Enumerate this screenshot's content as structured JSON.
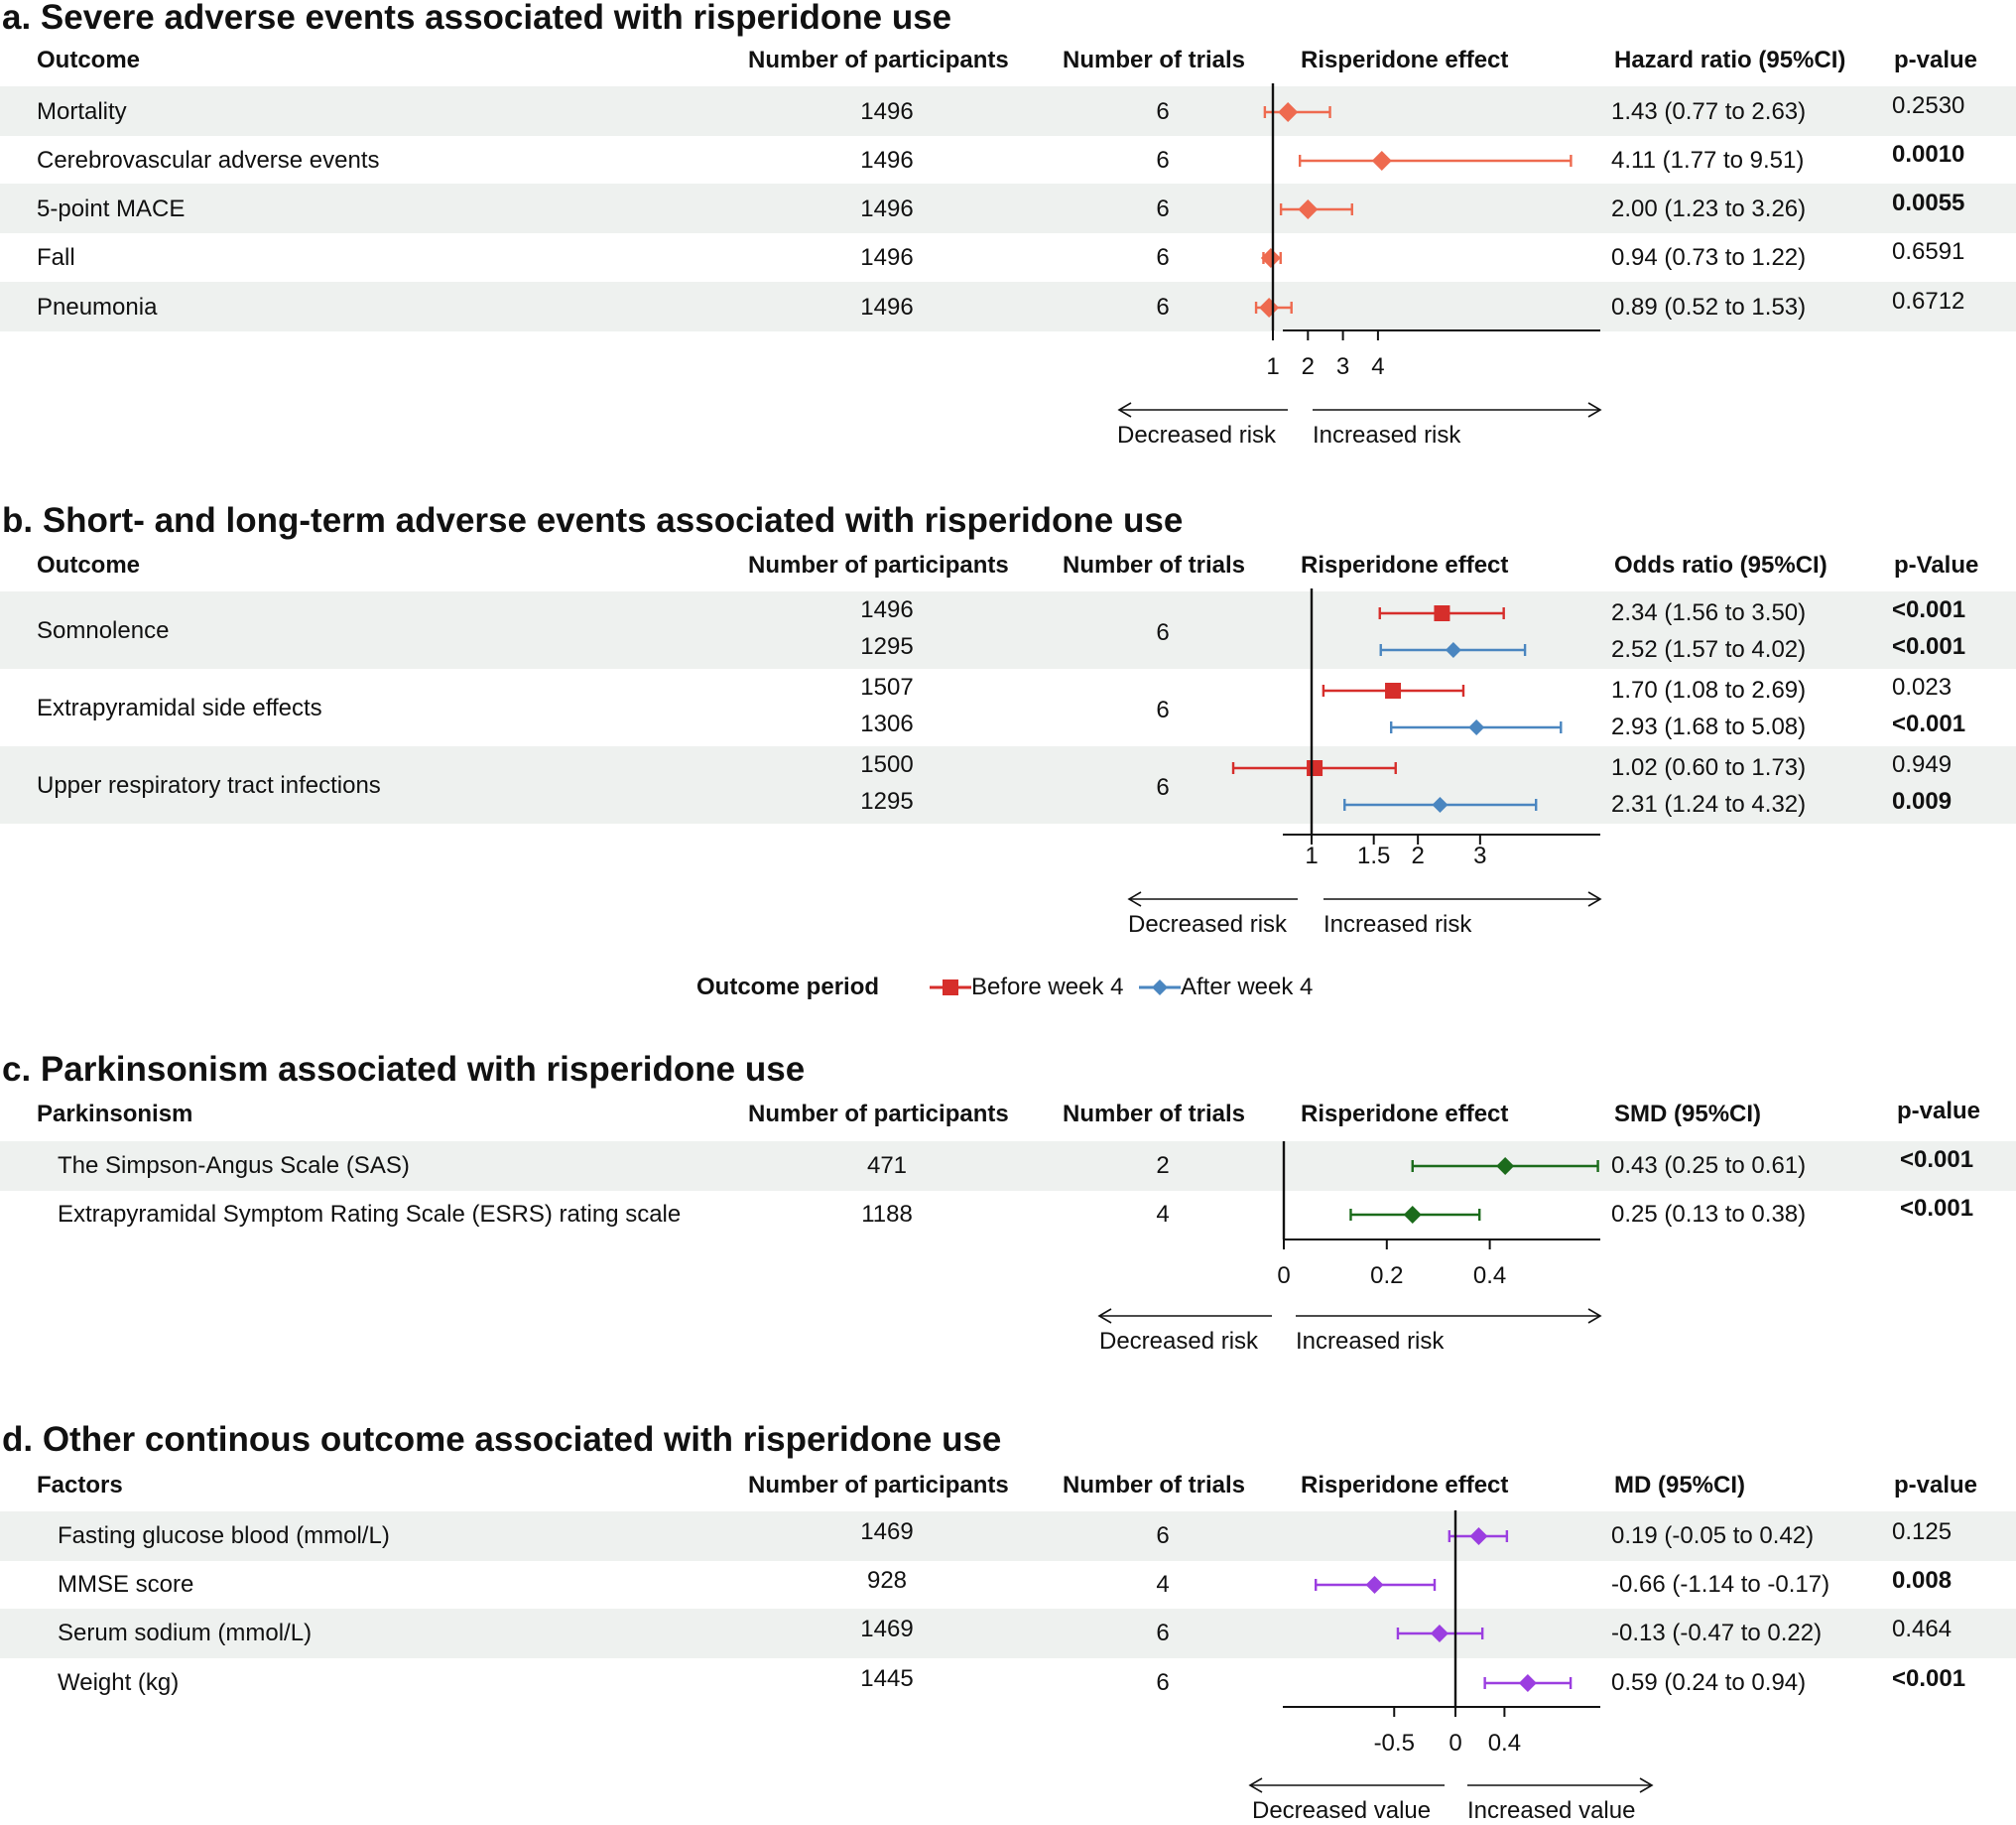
{
  "colors": {
    "band": "#eef1ef",
    "a": "#ee6a4f",
    "before": "#d62e2b",
    "after": "#4a86c0",
    "c": "#1b6b1b",
    "d": "#9b3ee0",
    "axis": "#111111"
  },
  "panels": {
    "a": {
      "title": "a. Severe adverse events associated with risperidone use",
      "headers": {
        "outcome": "Outcome",
        "participants": "Number of participants",
        "trials": "Number of trials",
        "effect": "Risperidone effect",
        "ratio": "Hazard ratio (95%CI)",
        "p": "p-value"
      },
      "arrows": {
        "left": "Decreased risk",
        "right": "Increased risk"
      }
    },
    "b": {
      "title": "b. Short- and long-term adverse events associated with risperidone use",
      "headers": {
        "outcome": "Outcome",
        "participants": "Number of participants",
        "trials": "Number of trials",
        "effect": "Risperidone effect",
        "ratio": "Odds ratio (95%CI)",
        "p": "p-Value"
      },
      "arrows": {
        "left": "Decreased risk",
        "right": "Increased risk"
      },
      "legend": {
        "title": "Outcome period",
        "before": "Before week 4",
        "after": "After week 4"
      }
    },
    "c": {
      "title": "c. Parkinsonism associated with risperidone use",
      "headers": {
        "outcome": "Parkinsonism",
        "participants": "Number of participants",
        "trials": "Number of trials",
        "effect": "Risperidone effect",
        "ratio": "SMD (95%CI)",
        "p": "p-value"
      },
      "arrows": {
        "left": "Decreased risk",
        "right": "Increased risk"
      }
    },
    "d": {
      "title": "d. Other continous outcome associated with risperidone use",
      "headers": {
        "outcome": "Factors",
        "participants": "Number of participants",
        "trials": "Number of trials",
        "effect": "Risperidone effect",
        "ratio": "MD (95%CI)",
        "p": "p-value"
      },
      "arrows": {
        "left": "Decreased value",
        "right": "Increased value"
      }
    }
  },
  "chart_data": [
    {
      "type": "scatter",
      "title": "a. Severe adverse events associated with risperidone use",
      "measure": "Hazard ratio",
      "null_value": 1,
      "xlim": [
        0.8,
        9.5
      ],
      "ticks": [
        {
          "v": 1,
          "label": "1"
        },
        {
          "v": 2,
          "label": "2"
        },
        {
          "v": 3,
          "label": "3"
        },
        {
          "v": 4,
          "label": "4"
        }
      ],
      "rows": [
        {
          "outcome": "Mortality",
          "participants": "1496",
          "trials": "6",
          "estimate": 1.43,
          "lo": 0.77,
          "hi": 2.63,
          "ci_text": "1.43 (0.77 to 2.63)",
          "p": "0.2530",
          "p_bold": false
        },
        {
          "outcome": "Cerebrovascular adverse events",
          "participants": "1496",
          "trials": "6",
          "estimate": 4.11,
          "lo": 1.77,
          "hi": 9.51,
          "ci_text": "4.11 (1.77 to 9.51)",
          "p": "0.0010",
          "p_bold": true
        },
        {
          "outcome": "5-point MACE",
          "participants": "1496",
          "trials": "6",
          "estimate": 2.0,
          "lo": 1.23,
          "hi": 3.26,
          "ci_text": "2.00 (1.23 to 3.26)",
          "p": "0.0055",
          "p_bold": true
        },
        {
          "outcome": "Fall",
          "participants": "1496",
          "trials": "6",
          "estimate": 0.94,
          "lo": 0.73,
          "hi": 1.22,
          "ci_text": "0.94 (0.73 to 1.22)",
          "p": "0.6591",
          "p_bold": false
        },
        {
          "outcome": "Pneumonia",
          "participants": "1496",
          "trials": "6",
          "estimate": 0.89,
          "lo": 0.52,
          "hi": 1.53,
          "ci_text": "0.89 (0.52 to 1.53)",
          "p": "0.6712",
          "p_bold": false
        }
      ]
    },
    {
      "type": "scatter",
      "title": "b. Short- and long-term adverse events associated with risperidone use",
      "measure": "Odds ratio",
      "null_value": 1,
      "xlim": [
        0.6,
        5.08
      ],
      "ticks": [
        {
          "v": 1,
          "label": "1"
        },
        {
          "v": 1.5,
          "label": "1.5"
        },
        {
          "v": 2,
          "label": "2"
        },
        {
          "v": 3,
          "label": "3"
        }
      ],
      "series": [
        {
          "name": "Before week 4"
        },
        {
          "name": "After week 4"
        }
      ],
      "groups": [
        {
          "outcome": "Somnolence",
          "trials": "6",
          "rows": [
            {
              "period": "Before week 4",
              "participants": "1496",
              "estimate": 2.34,
              "lo": 1.56,
              "hi": 3.5,
              "ci_text": "2.34 (1.56 to 3.50)",
              "p": "<0.001",
              "p_bold": true
            },
            {
              "period": "After week 4",
              "participants": "1295",
              "estimate": 2.52,
              "lo": 1.57,
              "hi": 4.02,
              "ci_text": "2.52 (1.57 to 4.02)",
              "p": "<0.001",
              "p_bold": true
            }
          ]
        },
        {
          "outcome": "Extrapyramidal side effects",
          "trials": "6",
          "rows": [
            {
              "period": "Before week 4",
              "participants": "1507",
              "estimate": 1.7,
              "lo": 1.08,
              "hi": 2.69,
              "ci_text": "1.70 (1.08 to 2.69)",
              "p": "0.023",
              "p_bold": false
            },
            {
              "period": "After week 4",
              "participants": "1306",
              "estimate": 2.93,
              "lo": 1.68,
              "hi": 5.08,
              "ci_text": "2.93 (1.68 to 5.08)",
              "p": "<0.001",
              "p_bold": true
            }
          ]
        },
        {
          "outcome": "Upper respiratory tract infections",
          "trials": "6",
          "rows": [
            {
              "period": "Before week 4",
              "participants": "1500",
              "estimate": 1.02,
              "lo": 0.6,
              "hi": 1.73,
              "ci_text": "1.02 (0.60 to 1.73)",
              "p": "0.949",
              "p_bold": false
            },
            {
              "period": "After week 4",
              "participants": "1295",
              "estimate": 2.31,
              "lo": 1.24,
              "hi": 4.32,
              "ci_text": "2.31 (1.24 to 4.32)",
              "p": "0.009",
              "p_bold": true
            }
          ]
        }
      ]
    },
    {
      "type": "scatter",
      "title": "c. Parkinsonism associated with risperidone use",
      "measure": "SMD",
      "null_value": 0,
      "xlim": [
        0,
        0.61
      ],
      "ticks": [
        {
          "v": 0,
          "label": "0"
        },
        {
          "v": 0.2,
          "label": "0.2"
        },
        {
          "v": 0.4,
          "label": "0.4"
        }
      ],
      "rows": [
        {
          "outcome": "The Simpson-Angus Scale (SAS)",
          "participants": "471",
          "trials": "2",
          "estimate": 0.43,
          "lo": 0.25,
          "hi": 0.61,
          "ci_text": "0.43 (0.25 to 0.61)",
          "p": "<0.001",
          "p_bold": true
        },
        {
          "outcome": "Extrapyramidal Symptom Rating Scale (ESRS) rating scale",
          "participants": "1188",
          "trials": "4",
          "estimate": 0.25,
          "lo": 0.13,
          "hi": 0.38,
          "ci_text": "0.25 (0.13 to 0.38)",
          "p": "<0.001",
          "p_bold": true
        }
      ]
    },
    {
      "type": "scatter",
      "title": "d. Other continous outcome associated with risperidone use",
      "measure": "MD",
      "null_value": 0,
      "xlim": [
        -1.4,
        1.16
      ],
      "ticks": [
        {
          "v": -0.5,
          "label": "-0.5"
        },
        {
          "v": 0,
          "label": "0"
        },
        {
          "v": 0.4,
          "label": "0.4"
        }
      ],
      "rows": [
        {
          "outcome": "Fasting glucose blood (mmol/L)",
          "participants": "1469",
          "trials": "6",
          "estimate": 0.19,
          "lo": -0.05,
          "hi": 0.42,
          "ci_text": "0.19 (-0.05 to 0.42)",
          "p": "0.125",
          "p_bold": false
        },
        {
          "outcome": "MMSE score",
          "participants": "928",
          "trials": "4",
          "estimate": -0.66,
          "lo": -1.14,
          "hi": -0.17,
          "ci_text": "-0.66 (-1.14 to -0.17)",
          "p": "0.008",
          "p_bold": true
        },
        {
          "outcome": "Serum sodium (mmol/L)",
          "participants": "1469",
          "trials": "6",
          "estimate": -0.13,
          "lo": -0.47,
          "hi": 0.22,
          "ci_text": "-0.13 (-0.47 to 0.22)",
          "p": "0.464",
          "p_bold": false
        },
        {
          "outcome": "Weight (kg)",
          "participants": "1445",
          "trials": "6",
          "estimate": 0.59,
          "lo": 0.24,
          "hi": 0.94,
          "ci_text": "0.59 (0.24 to 0.94)",
          "p": "<0.001",
          "p_bold": true
        }
      ]
    }
  ]
}
